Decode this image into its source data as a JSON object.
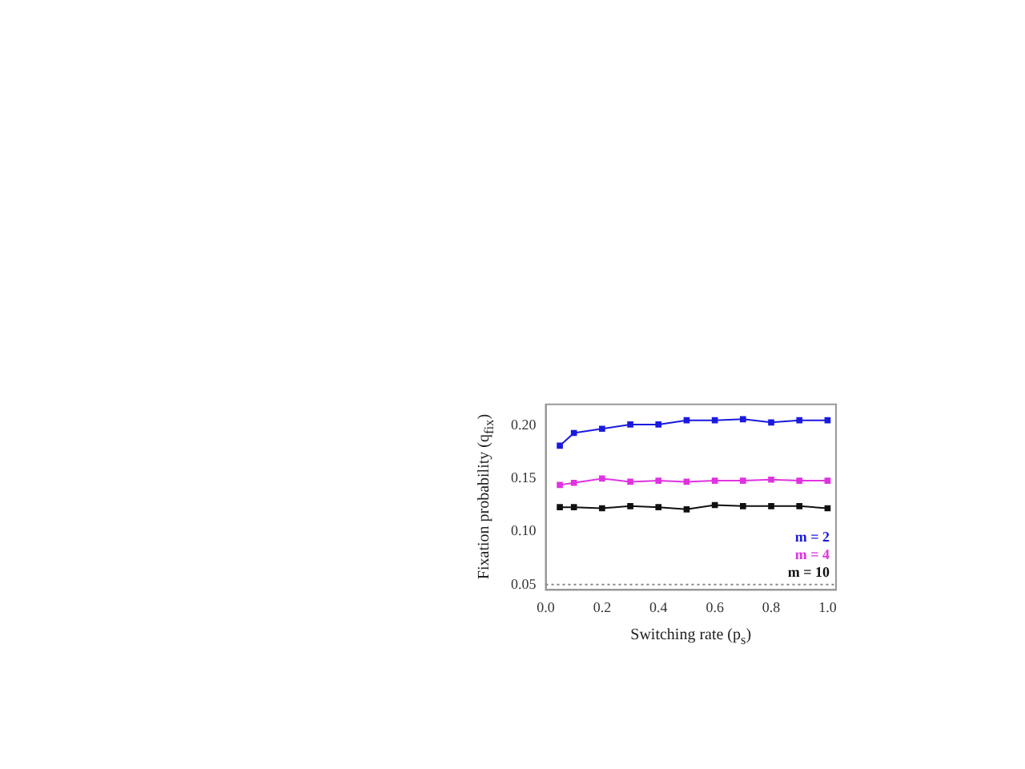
{
  "chart_data": {
    "type": "line",
    "xlabel": "Switching rate (p$_{s}$)",
    "ylabel": "Fixation probability (q$_{fix}$)",
    "x": [
      0.05,
      0.1,
      0.2,
      0.3,
      0.4,
      0.5,
      0.6,
      0.7,
      0.8,
      0.9,
      1.0
    ],
    "series": [
      {
        "name": "m = 2",
        "color": "#1a1adf",
        "values": [
          0.181,
          0.193,
          0.197,
          0.201,
          0.201,
          0.205,
          0.205,
          0.206,
          0.203,
          0.205,
          0.205
        ]
      },
      {
        "name": "m = 4",
        "color": "#e033e0",
        "values": [
          0.144,
          0.146,
          0.15,
          0.147,
          0.148,
          0.147,
          0.148,
          0.148,
          0.149,
          0.148,
          0.148
        ]
      },
      {
        "name": "m = 10",
        "color": "#111111",
        "values": [
          0.123,
          0.123,
          0.122,
          0.124,
          0.123,
          0.121,
          0.125,
          0.124,
          0.124,
          0.124,
          0.122
        ]
      }
    ],
    "xlim": [
      0,
      1.03
    ],
    "xticks": [
      {
        "value": 0,
        "label": "0.0"
      },
      {
        "value": 0.2,
        "label": "0.2"
      },
      {
        "value": 0.4,
        "label": "0.4"
      },
      {
        "value": 0.6,
        "label": "0.6"
      },
      {
        "value": 0.8,
        "label": "0.8"
      },
      {
        "value": 1,
        "label": "1.0"
      }
    ],
    "ylim": [
      0.045,
      0.22
    ],
    "yticks": [
      {
        "value": 0.05,
        "label": "0.05"
      },
      {
        "value": 0.1,
        "label": "0.10"
      },
      {
        "value": 0.15,
        "label": "0.15"
      },
      {
        "value": 0.2,
        "label": "0.20"
      }
    ],
    "ref_lines": [
      {
        "axis": "y",
        "value": 0.05,
        "line_style": "dotted",
        "color": "#888888"
      }
    ],
    "legend": "bottom right",
    "marker": "square",
    "line_style": "solid",
    "grid": false
  }
}
